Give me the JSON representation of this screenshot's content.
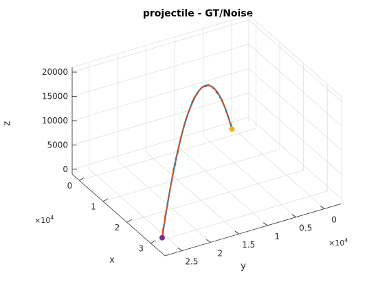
{
  "chart_data": {
    "type": "line",
    "title": "projectile - GT/Noise",
    "xlabel": "x",
    "ylabel": "y",
    "zlabel": "z",
    "x_multiplier": "×10^4",
    "y_multiplier": "×10^4",
    "xlim": [
      -0.3,
      3.6
    ],
    "ylim": [
      -0.3,
      2.8
    ],
    "zlim": [
      -1000,
      21000
    ],
    "x_ticks": [
      {
        "value": 0,
        "label": "0"
      },
      {
        "value": 1,
        "label": "1"
      },
      {
        "value": 2,
        "label": "2"
      },
      {
        "value": 3,
        "label": "3"
      }
    ],
    "y_ticks": [
      {
        "value": 0,
        "label": "0"
      },
      {
        "value": 0.5,
        "label": "0.5"
      },
      {
        "value": 1,
        "label": "1"
      },
      {
        "value": 1.5,
        "label": "1.5"
      },
      {
        "value": 2,
        "label": "2"
      },
      {
        "value": 2.5,
        "label": "2.5"
      }
    ],
    "z_ticks": [
      {
        "value": 0,
        "label": "0"
      },
      {
        "value": 5000,
        "label": "5000"
      },
      {
        "value": 10000,
        "label": "10000"
      },
      {
        "value": 15000,
        "label": "15000"
      },
      {
        "value": 20000,
        "label": "20000"
      }
    ],
    "grid": true,
    "trajectory": {
      "start": {
        "x": 3.1,
        "y": 2.64,
        "z": 0
      },
      "end": {
        "x": -0.05,
        "y": 0.1,
        "z": 0
      },
      "apex_z": 18500
    },
    "series": [
      {
        "color": "#0072BD",
        "points": 60
      },
      {
        "color": "#D95319",
        "points": 60,
        "noise": true
      }
    ],
    "markers": [
      {
        "position": "start",
        "color": "#7E2F8E"
      },
      {
        "position": "end",
        "color": "#EDB120"
      }
    ]
  }
}
